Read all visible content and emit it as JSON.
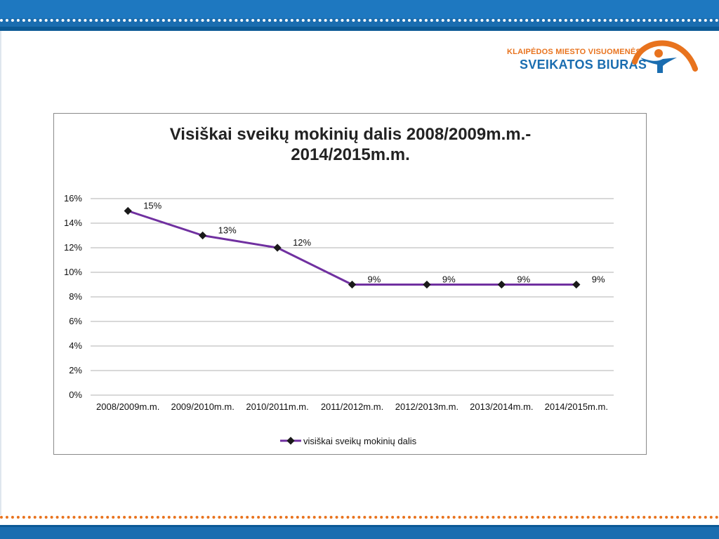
{
  "logo": {
    "line1": "KLAIPĖDOS MIESTO VISUOMENĖS",
    "line2": "SVEIKATOS BIURAS"
  },
  "colors": {
    "brand_blue": "#1a6db0",
    "brand_orange": "#e8731e",
    "series_line": "#7030a0",
    "marker": "#1a1a1a",
    "grid": "#b0b0b0"
  },
  "chart_data": {
    "type": "line",
    "title_lines": [
      "Visiškai sveikų mokinių dalis 2008/2009m.m.-",
      "2014/2015m.m."
    ],
    "xlabel": "",
    "ylabel": "",
    "categories": [
      "2008/2009m.m.",
      "2009/2010m.m.",
      "2010/2011m.m.",
      "2011/2012m.m.",
      "2012/2013m.m.",
      "2013/2014m.m.",
      "2014/2015m.m."
    ],
    "y_ticks": [
      "0%",
      "2%",
      "4%",
      "6%",
      "8%",
      "10%",
      "12%",
      "14%",
      "16%"
    ],
    "ylim": [
      0,
      16
    ],
    "grid": true,
    "legend_position": "bottom",
    "series": [
      {
        "name": "visiškai sveikų mokinių dalis",
        "values": [
          15,
          13,
          12,
          9,
          9,
          9,
          9
        ],
        "labels": [
          "15%",
          "13%",
          "12%",
          "9%",
          "9%",
          "9%",
          "9%"
        ]
      }
    ]
  }
}
